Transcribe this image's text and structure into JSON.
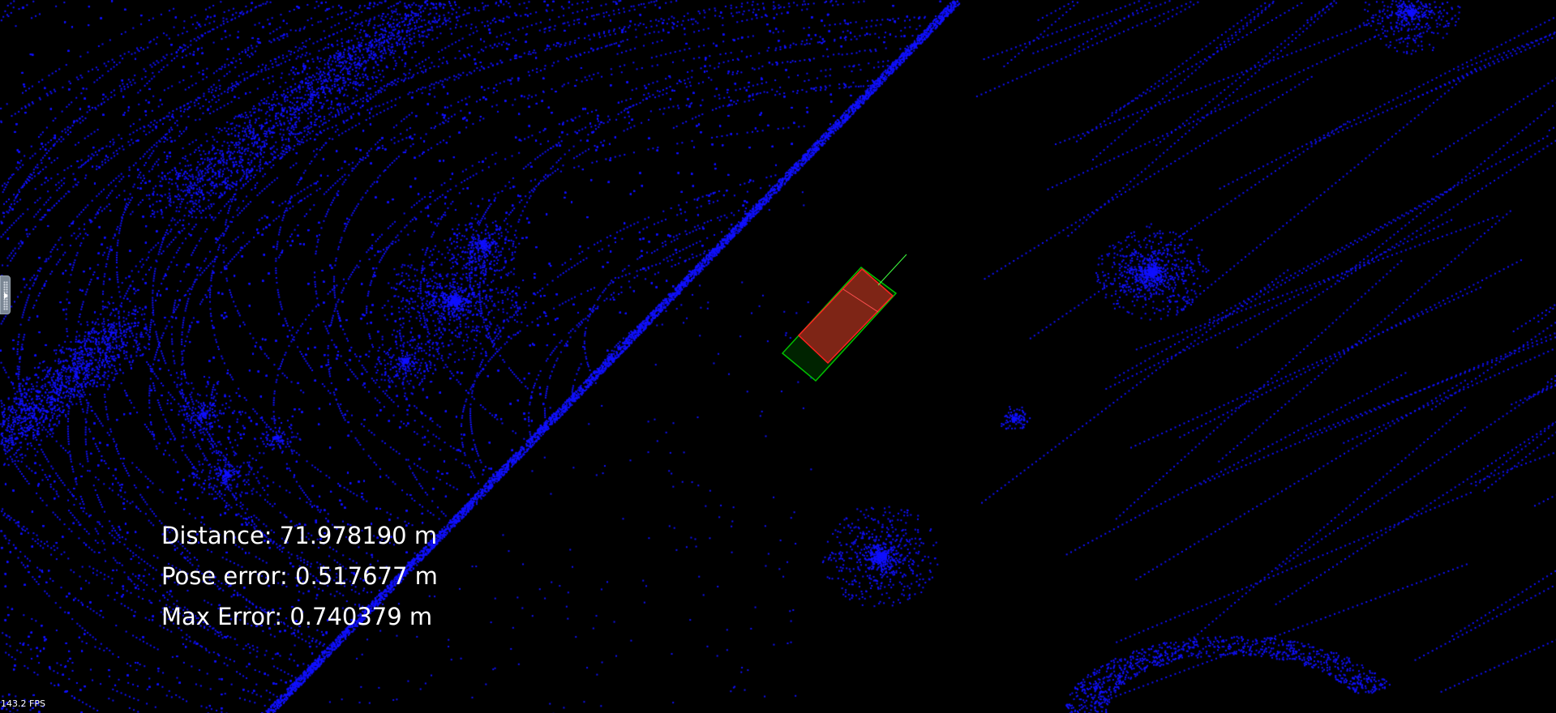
{
  "viewer": {
    "point_color": "#1010ff",
    "background_color": "#000000"
  },
  "stats": {
    "distance": "Distance: 71.978190 m",
    "pose_error": "Pose error: 0.517677 m",
    "max_error": "Max Error: 0.740379 m"
  },
  "fps_label": "143.2 FPS",
  "bounding_boxes": [
    {
      "name": "ground-truth-box",
      "color": "#00c000"
    },
    {
      "name": "estimated-box",
      "color": "#ff2020"
    }
  ],
  "heading_line_color": "#40ff40",
  "side_panel_toggle": {
    "icon": "chevron-right-icon"
  }
}
